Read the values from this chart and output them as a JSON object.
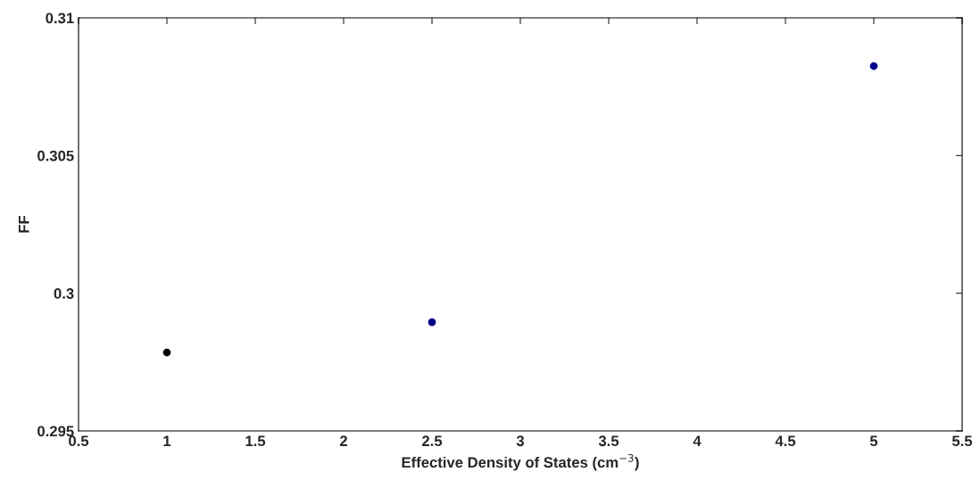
{
  "chart_data": {
    "type": "scatter",
    "xlabel": "Effective Density of States (cm$^{−3}$)",
    "ylabel": "FF",
    "x": [
      1,
      2.5,
      5
    ],
    "series": [
      {
        "values": [
          0.29785,
          0.29895,
          0.30825
        ],
        "colors": [
          "#000000",
          "#00008b",
          "#00008b"
        ]
      }
    ],
    "xlim": [
      0.5,
      5.5
    ],
    "xticks": [
      0.5,
      1,
      1.5,
      2,
      2.5,
      3,
      3.5,
      4,
      4.5,
      5,
      5.5
    ],
    "ylim": [
      0.295,
      0.31
    ],
    "yticks": [
      0.295,
      0.3,
      0.305,
      0.31
    ],
    "marker": "circle",
    "grid": false
  }
}
